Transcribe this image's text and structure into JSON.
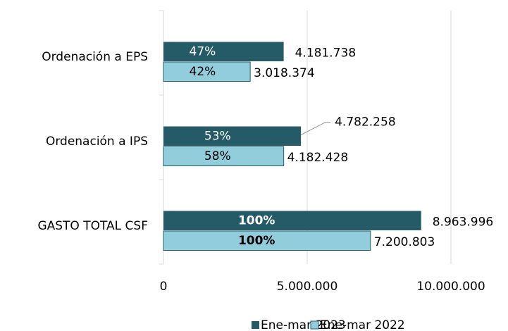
{
  "chart_data": {
    "type": "hbar",
    "categories": [
      "Ordenación a EPS",
      "Ordenación a IPS",
      "GASTO TOTAL CSF"
    ],
    "series": [
      {
        "name": "Ene-mar 2023",
        "color": "#245b67",
        "values": [
          4181738,
          4782258,
          8963996
        ],
        "value_labels": [
          "4.181.738",
          "4.782.258",
          "8.963.996"
        ],
        "percent_labels": [
          "47%",
          "53%",
          "100%"
        ]
      },
      {
        "name": "Ene-mar 2022",
        "color": "#92cddc",
        "values": [
          3018374,
          4182428,
          7200803
        ],
        "value_labels": [
          "3.018.374",
          "4.182.428",
          "7.200.803"
        ],
        "percent_labels": [
          "42%",
          "58%",
          "100%"
        ]
      }
    ],
    "xlim": [
      0,
      10000000
    ],
    "xticks": [
      0,
      {
        "value": 5000000,
        "label": "5.000.000"
      },
      {
        "value": 10000000,
        "label": "10.000.000"
      }
    ],
    "grid": true
  }
}
